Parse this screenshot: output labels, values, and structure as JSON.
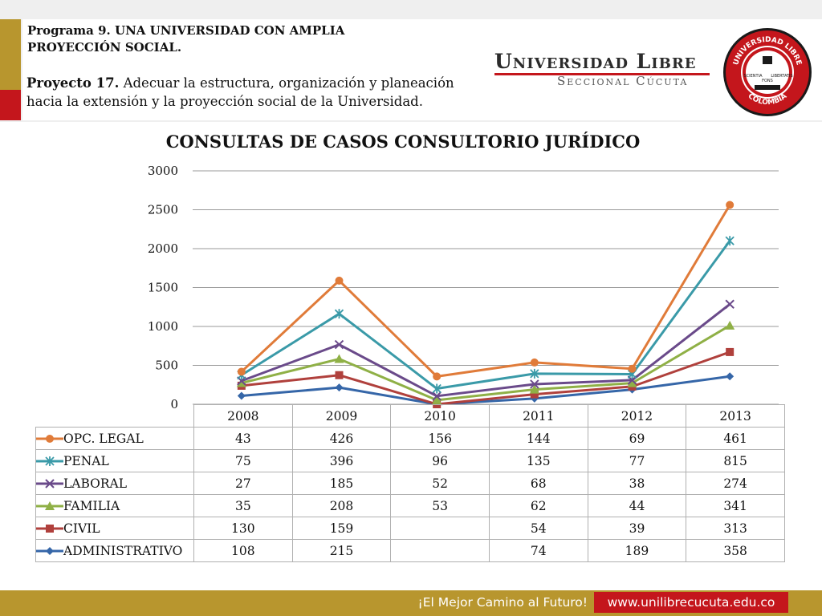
{
  "header": {
    "program_title": "Programa 9. UNA UNIVERSIDAD CON AMPLIA PROYECCIÓN SOCIAL.",
    "project_label": "Proyecto 17.",
    "project_text": "Adecuar la estructura, organización y planeación hacia la extensión y la proyección social de la Universidad."
  },
  "logo": {
    "name": "Universidad Libre",
    "subtitle": "Seccional Cúcuta",
    "seal_top": "UNIVERSIDAD LIBRE",
    "seal_bottom": "COLOMBIA",
    "seal_left": "SCIENTIA",
    "seal_center": "FONS",
    "seal_right": "LIBERTATIS"
  },
  "colors": {
    "gold": "#b8962e",
    "red": "#c4161c"
  },
  "chart_data": {
    "type": "line",
    "title": "CONSULTAS  DE CASOS  CONSULTORIO JURÍDICO",
    "categories": [
      "2008",
      "2009",
      "2010",
      "2011",
      "2012",
      "2013"
    ],
    "stacked": true,
    "ylim": [
      0,
      3000
    ],
    "yticks": [
      0,
      500,
      1000,
      1500,
      2000,
      2500,
      3000
    ],
    "grid": true,
    "legend": "table-below",
    "series": [
      {
        "name": "OPC. LEGAL",
        "values": [
          43,
          426,
          156,
          144,
          69,
          461
        ],
        "display": [
          "43",
          "426",
          "156",
          "144",
          "69",
          "461"
        ],
        "color": "#e07b39",
        "marker": "circle"
      },
      {
        "name": "PENAL",
        "values": [
          75,
          396,
          96,
          135,
          77,
          815
        ],
        "display": [
          "75",
          "396",
          "96",
          "135",
          "77",
          "815"
        ],
        "color": "#3a9aa8",
        "marker": "star"
      },
      {
        "name": "LABORAL",
        "values": [
          27,
          185,
          52,
          68,
          38,
          274
        ],
        "display": [
          "27",
          "185",
          "52",
          "68",
          "38",
          "274"
        ],
        "color": "#6a4a8a",
        "marker": "x"
      },
      {
        "name": "FAMILIA",
        "values": [
          35,
          208,
          53,
          62,
          44,
          341
        ],
        "display": [
          "35",
          "208",
          "53",
          "62",
          "44",
          "341"
        ],
        "color": "#8fb046",
        "marker": "triangle"
      },
      {
        "name": "CIVIL",
        "values": [
          130,
          159,
          0,
          54,
          39,
          313
        ],
        "display": [
          "130",
          "159",
          "",
          "54",
          "39",
          "313"
        ],
        "color": "#b0403c",
        "marker": "square"
      },
      {
        "name": "ADMINISTRATIVO",
        "values": [
          108,
          215,
          0,
          74,
          189,
          358
        ],
        "display": [
          "108",
          "215",
          "",
          "74",
          "189",
          "358"
        ],
        "color": "#3566a8",
        "marker": "diamond"
      }
    ]
  },
  "footer": {
    "slogan": "¡El Mejor Camino al Futuro!",
    "url": "www.unilibrecucuta.edu.co"
  }
}
